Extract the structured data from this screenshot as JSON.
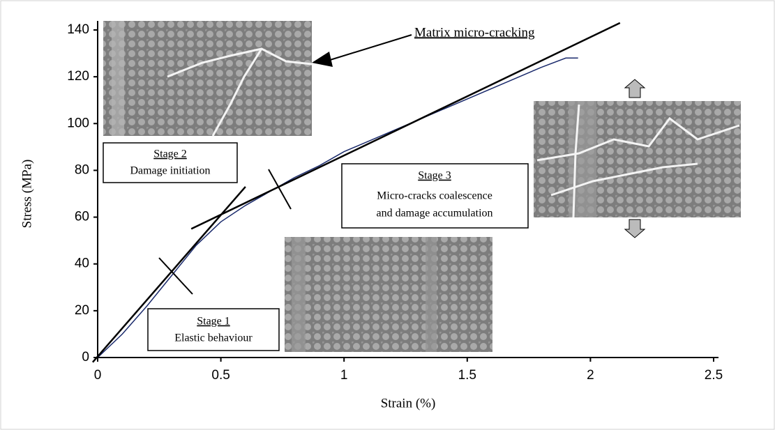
{
  "chart_data": {
    "type": "line",
    "x_label": "Strain (%)",
    "y_label": "Stress (MPa)",
    "xlim": [
      0,
      2.5
    ],
    "xticks": [
      0,
      0.5,
      1,
      1.5,
      2,
      2.5
    ],
    "ylim": [
      0,
      140
    ],
    "yticks": [
      0,
      20,
      40,
      60,
      80,
      100,
      120,
      140
    ],
    "series": [
      {
        "color": "#1a2a6c",
        "x": [
          0,
          0.1,
          0.2,
          0.3,
          0.4,
          0.5,
          0.6,
          0.7,
          0.8,
          0.9,
          1.0,
          1.2,
          1.4,
          1.6,
          1.8,
          1.9,
          1.95
        ],
        "values": [
          0,
          10,
          22,
          35,
          48,
          58,
          65,
          71,
          77,
          82,
          88,
          97,
          106,
          115,
          124,
          128,
          128
        ]
      },
      {
        "color": "#000000",
        "x": [
          -0.02,
          0.6
        ],
        "values": [
          -2,
          73
        ]
      },
      {
        "color": "#000000",
        "x": [
          0.38,
          2.12
        ],
        "values": [
          55,
          143
        ]
      }
    ],
    "annotations": {
      "matrix": "Matrix micro-cracking",
      "stage2_title": "Stage 2",
      "stage2_text": "Damage initiation",
      "stage3_title": "Stage 3",
      "stage3_line1": "Micro-cracks coalescence",
      "stage3_line2": "and damage accumulation",
      "stage1_title": "Stage 1",
      "stage1_text": "Elastic behaviour"
    }
  }
}
